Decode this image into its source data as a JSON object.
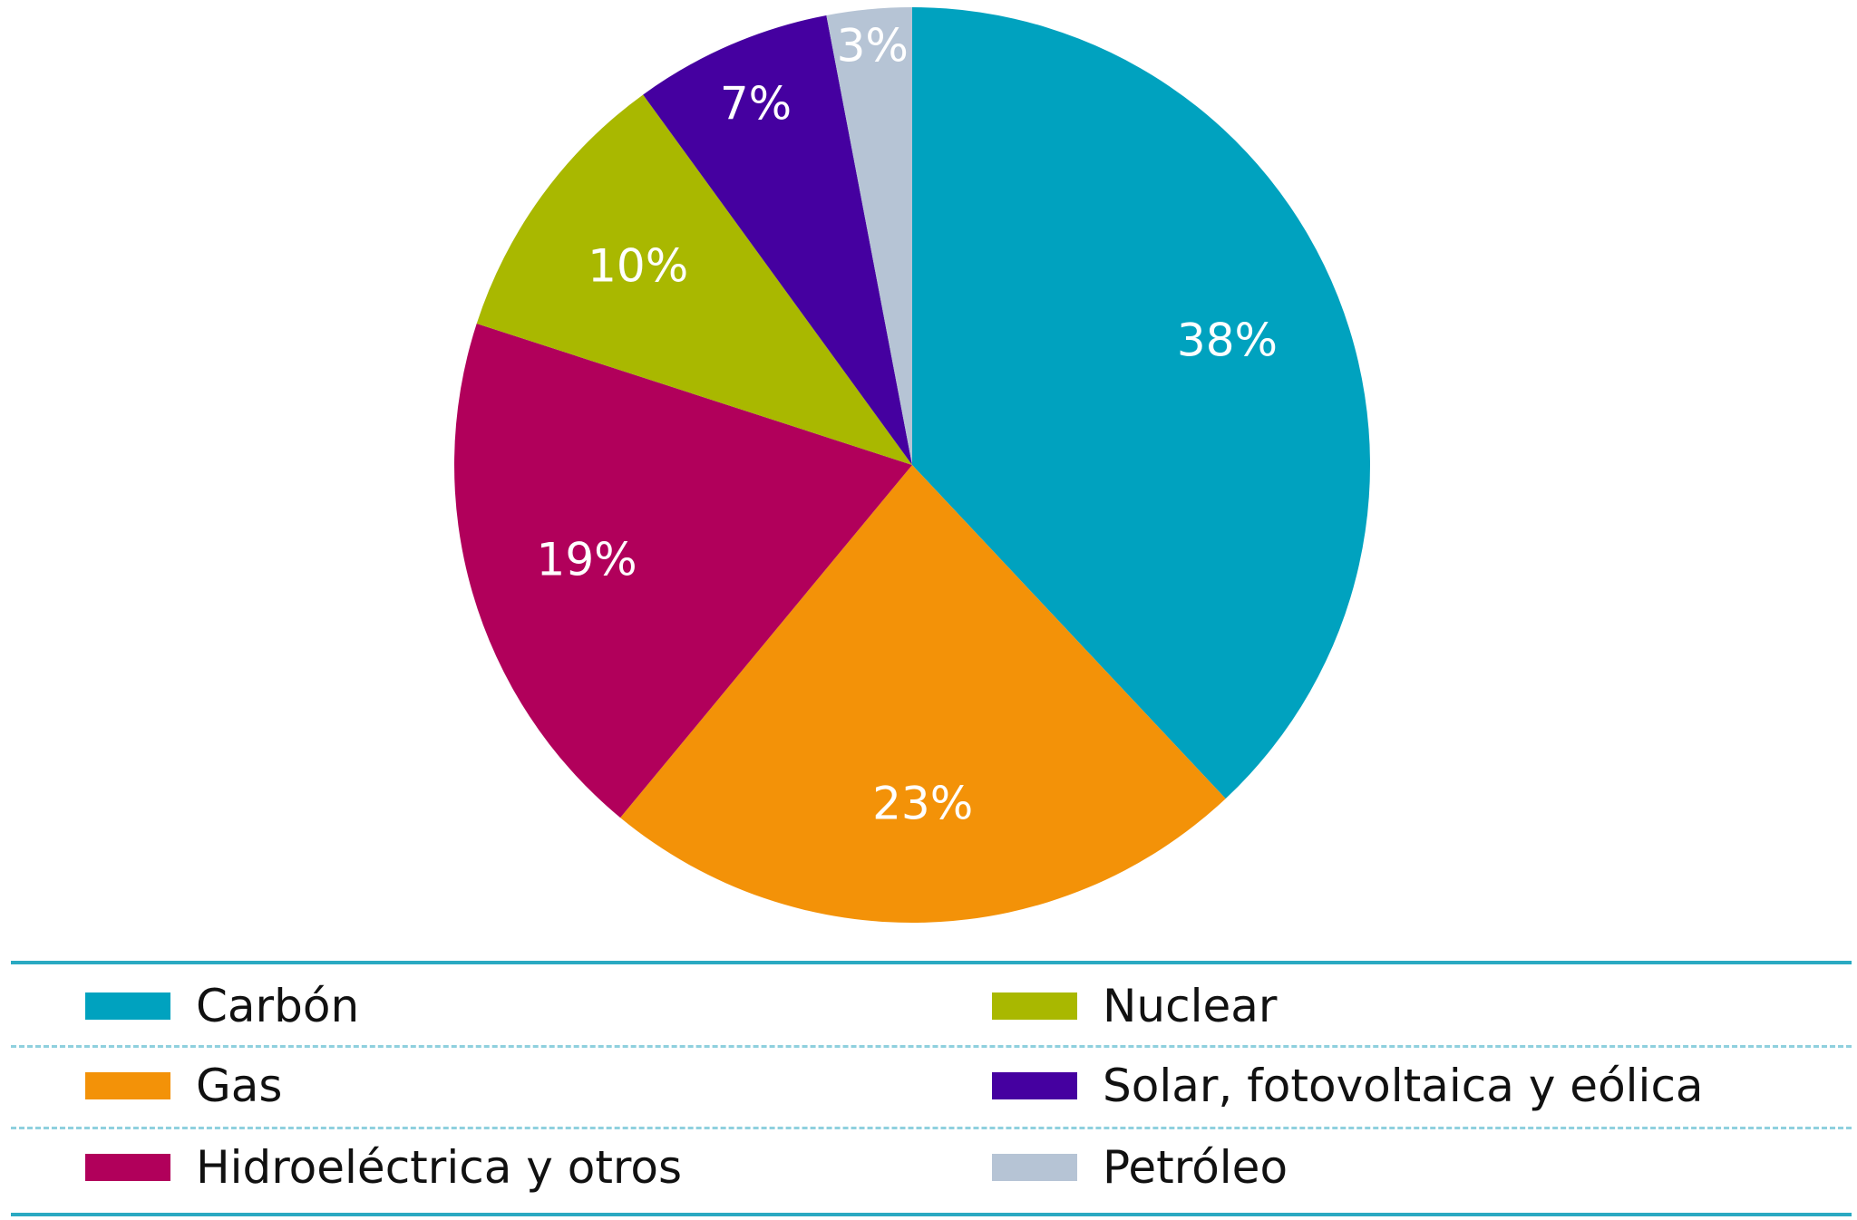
{
  "chart_data": {
    "type": "pie",
    "title": "",
    "slices": [
      {
        "name": "Carbón",
        "value": 38,
        "label": "38%",
        "color": "#00a2bf"
      },
      {
        "name": "Gas",
        "value": 23,
        "label": "23%",
        "color": "#f39208"
      },
      {
        "name": "Hidroeléctrica y otros",
        "value": 19,
        "label": "19%",
        "color": "#b1005b"
      },
      {
        "name": "Nuclear",
        "value": 10,
        "label": "10%",
        "color": "#a9b800"
      },
      {
        "name": "Solar, fotovoltaica y eólica",
        "value": 7,
        "label": "7%",
        "color": "#4500a0"
      },
      {
        "name": "Petróleo",
        "value": 3,
        "label": "3%",
        "color": "#b6c4d5"
      }
    ],
    "start": "12 o'clock",
    "direction": "clockwise",
    "legend_placement": "bottom, two columns"
  },
  "legend": {
    "left_column": [
      {
        "label": "Carbón",
        "color": "#00a2bf"
      },
      {
        "label": "Gas",
        "color": "#f39208"
      },
      {
        "label": "Hidroeléctrica y otros",
        "color": "#b1005b"
      }
    ],
    "right_column": [
      {
        "label": "Nuclear",
        "color": "#a9b800"
      },
      {
        "label": "Solar, fotovoltaica y eólica",
        "color": "#4500a0"
      },
      {
        "label": "Petróleo",
        "color": "#b6c4d5"
      }
    ]
  }
}
